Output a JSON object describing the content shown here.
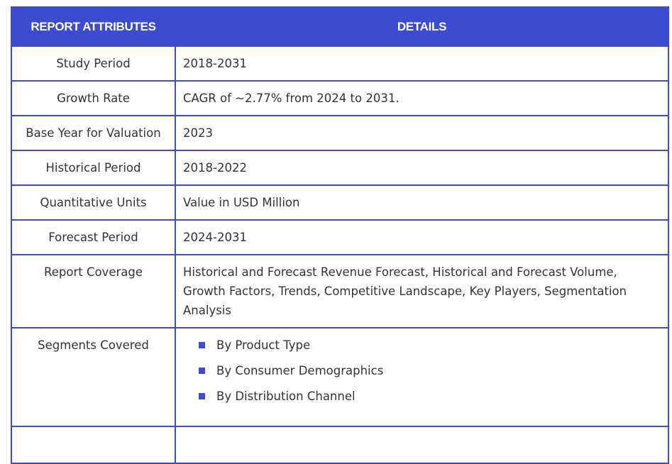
{
  "header": {
    "col1": "REPORT ATTRIBUTES",
    "col2": "DETAILS"
  },
  "rows": [
    {
      "attribute": "Study Period",
      "details": "2018-2031"
    },
    {
      "attribute": "Growth Rate",
      "details": "CAGR of ~2.77% from 2024 to 2031."
    },
    {
      "attribute": "Base Year for Valuation",
      "details": "2023"
    },
    {
      "attribute": "Historical Period",
      "details": "2018-2022"
    },
    {
      "attribute": "Quantitative Units",
      "details": "Value in USD Million"
    },
    {
      "attribute": "Forecast Period",
      "details": "2024-2031"
    },
    {
      "attribute": "Report Coverage",
      "details": "Historical and Forecast Revenue Forecast, Historical and Forecast Volume, Growth Factors, Trends, Competitive Landscape, Key Players, Segmentation Analysis"
    }
  ],
  "segments": {
    "attribute": "Segments Covered",
    "items": [
      "By Product Type",
      "By Consumer Demographics",
      "By Distribution Channel"
    ]
  },
  "colors": {
    "accent": "#3d4bd0",
    "text": "#333333",
    "header_text": "#ffffff"
  }
}
